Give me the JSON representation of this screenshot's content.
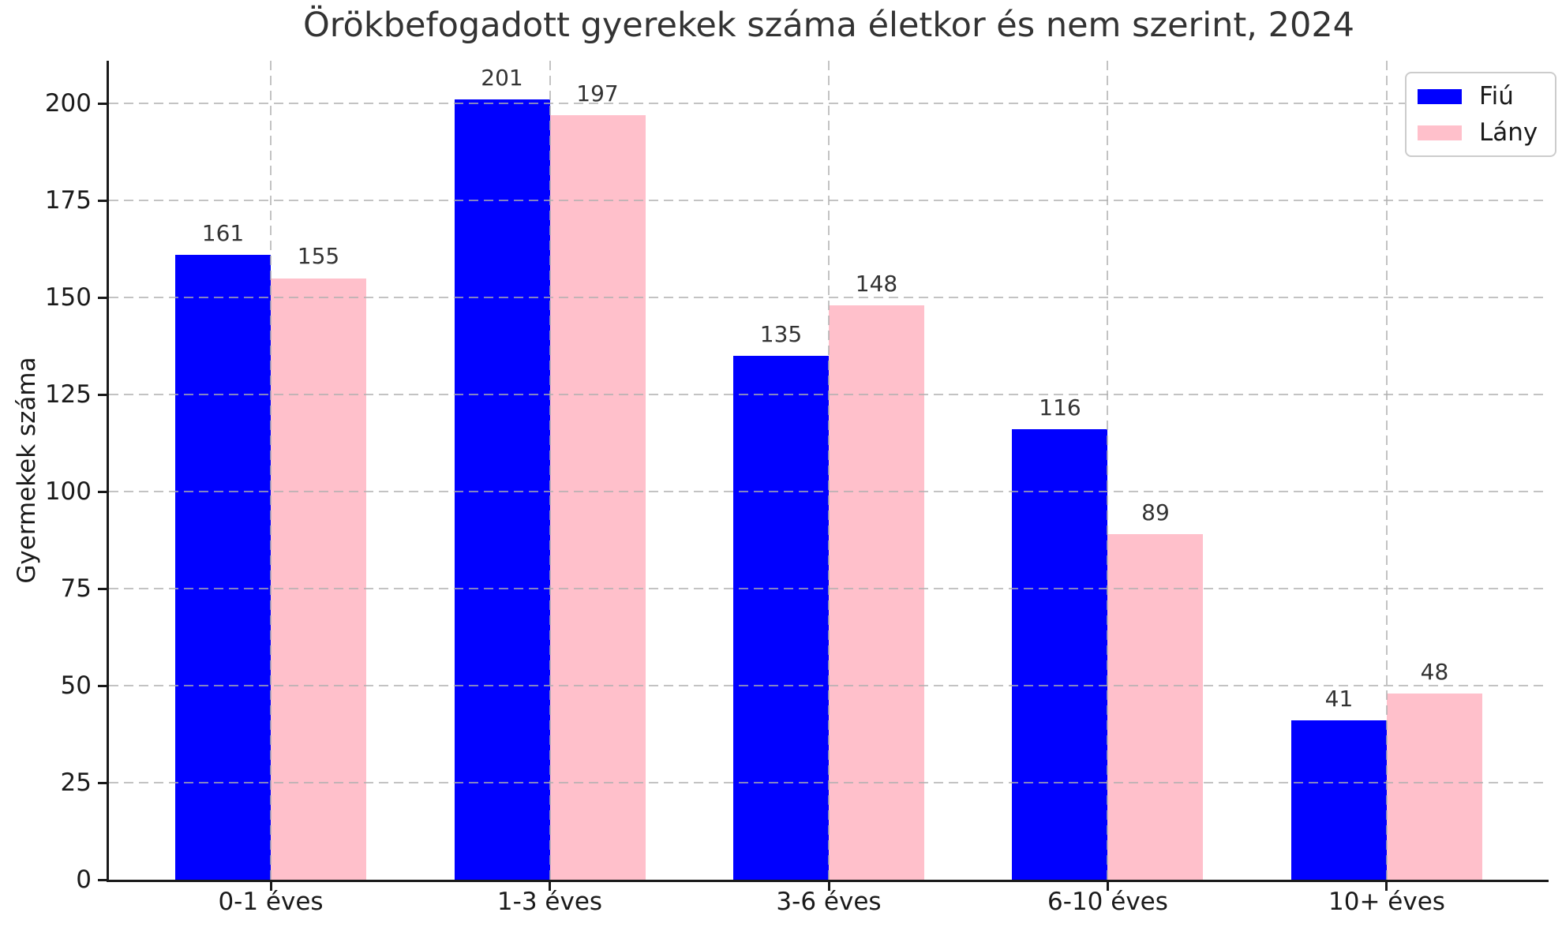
{
  "chart_data": {
    "type": "bar",
    "title": "Örökbefogadott gyerekek száma életkor és nem szerint, 2024",
    "xlabel": "",
    "ylabel": "Gyermekek száma",
    "categories": [
      "0-1 éves",
      "1-3 éves",
      "3-6 éves",
      "6-10 éves",
      "10+ éves"
    ],
    "series": [
      {
        "name": "Fiú",
        "color": "#0000ff",
        "values": [
          161,
          201,
          135,
          116,
          41
        ]
      },
      {
        "name": "Lány",
        "color": "#ffc0cb",
        "values": [
          155,
          197,
          148,
          89,
          48
        ]
      }
    ],
    "yticks": [
      0,
      25,
      50,
      75,
      100,
      125,
      150,
      175,
      200
    ],
    "ylim": [
      0,
      211
    ],
    "grid": "both, dashed, drawn above bars",
    "legend_position": "upper right",
    "bar_value_labels": true,
    "colors": {
      "fiu_bar": "#0000ff",
      "lany_bar": "#ffc0cb",
      "grid": "#afafaf",
      "axis": "#1a1a1a",
      "title_text": "#333333",
      "value_label_text": "#333333",
      "background": "#ffffff"
    }
  }
}
